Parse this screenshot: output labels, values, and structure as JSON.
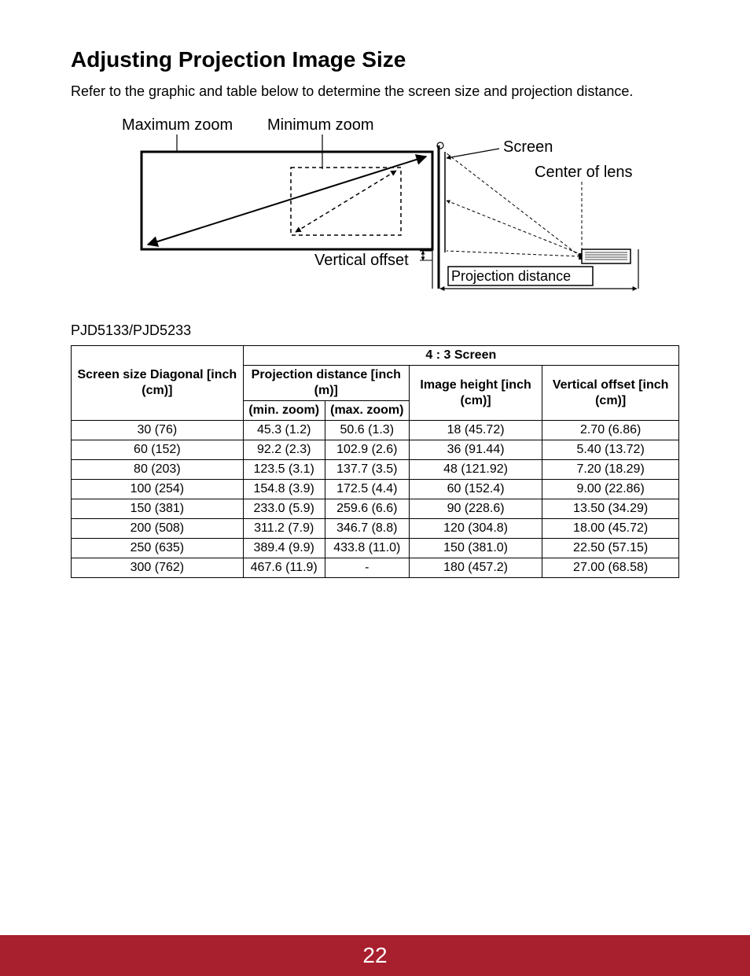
{
  "title": "Adjusting Projection Image Size",
  "intro": "Refer to the graphic and table below to determine the screen size and projection distance.",
  "diagram": {
    "labels": {
      "max_zoom": "Maximum zoom",
      "min_zoom": "Minimum zoom",
      "screen": "Screen",
      "center_of_lens": "Center of lens",
      "vertical_offset": "Vertical offset",
      "projection_distance": "Projection distance"
    },
    "colors": {
      "stroke": "#000000",
      "dash": "#000000",
      "text": "#000000",
      "background": "#ffffff"
    },
    "line_width_heavy": 3,
    "line_width_light": 1.5,
    "dash_pattern": "5 4"
  },
  "model_label": "PJD5133/PJD5233",
  "table": {
    "header": {
      "screen_size": "Screen size Diagonal [inch (cm)]",
      "screen_ratio": "4 : 3 Screen",
      "projection_distance": "Projection distance [inch (m)]",
      "min_zoom": "(min. zoom)",
      "max_zoom": "(max. zoom)",
      "image_height": "Image height [inch (cm)]",
      "vertical_offset": "Vertical offset [inch (cm)]"
    },
    "rows": [
      {
        "size": "30 (76)",
        "min": "45.3 (1.2)",
        "max": "50.6 (1.3)",
        "height": "18 (45.72)",
        "offset": "2.70 (6.86)"
      },
      {
        "size": "60 (152)",
        "min": "92.2 (2.3)",
        "max": "102.9 (2.6)",
        "height": "36 (91.44)",
        "offset": "5.40 (13.72)"
      },
      {
        "size": "80 (203)",
        "min": "123.5 (3.1)",
        "max": "137.7 (3.5)",
        "height": "48 (121.92)",
        "offset": "7.20 (18.29)"
      },
      {
        "size": "100 (254)",
        "min": "154.8 (3.9)",
        "max": "172.5 (4.4)",
        "height": "60 (152.4)",
        "offset": "9.00 (22.86)"
      },
      {
        "size": "150 (381)",
        "min": "233.0 (5.9)",
        "max": "259.6 (6.6)",
        "height": "90 (228.6)",
        "offset": "13.50 (34.29)"
      },
      {
        "size": "200 (508)",
        "min": "311.2 (7.9)",
        "max": "346.7 (8.8)",
        "height": "120 (304.8)",
        "offset": "18.00 (45.72)"
      },
      {
        "size": "250 (635)",
        "min": "389.4 (9.9)",
        "max": "433.8 (11.0)",
        "height": "150 (381.0)",
        "offset": "22.50 (57.15)"
      },
      {
        "size": "300 (762)",
        "min": "467.6 (11.9)",
        "max": "-",
        "height": "180 (457.2)",
        "offset": "27.00 (68.58)"
      }
    ]
  },
  "page_number": "22",
  "footer_color": "#a81f2d"
}
